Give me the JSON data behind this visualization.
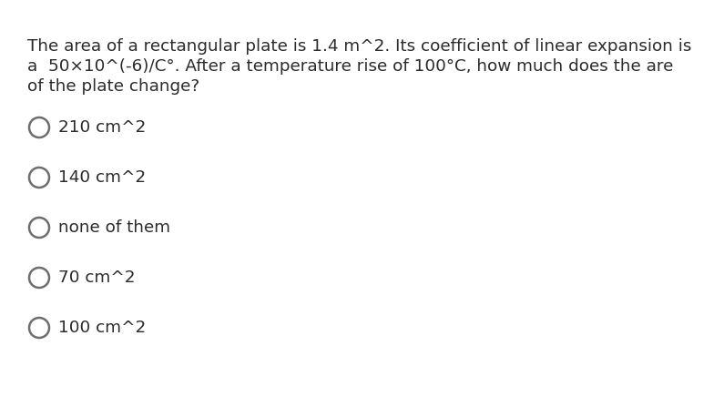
{
  "background_color": "#ffffff",
  "question_lines": [
    "The area of a rectangular plate is 1.4 m^2. Its coefficient of linear expansion is",
    "a  50×10^(-6)/C°. After a temperature rise of 100°C, how much does the are",
    "of the plate change?"
  ],
  "options": [
    "210 cm^2",
    "140 cm^2",
    "none of them",
    "70 cm^2",
    "100 cm^2"
  ],
  "text_color": "#2b2b2b",
  "circle_color": "#6e6e6e",
  "question_fontsize": 13.2,
  "option_fontsize": 13.2,
  "fig_width": 7.95,
  "fig_height": 4.47,
  "dpi": 100
}
